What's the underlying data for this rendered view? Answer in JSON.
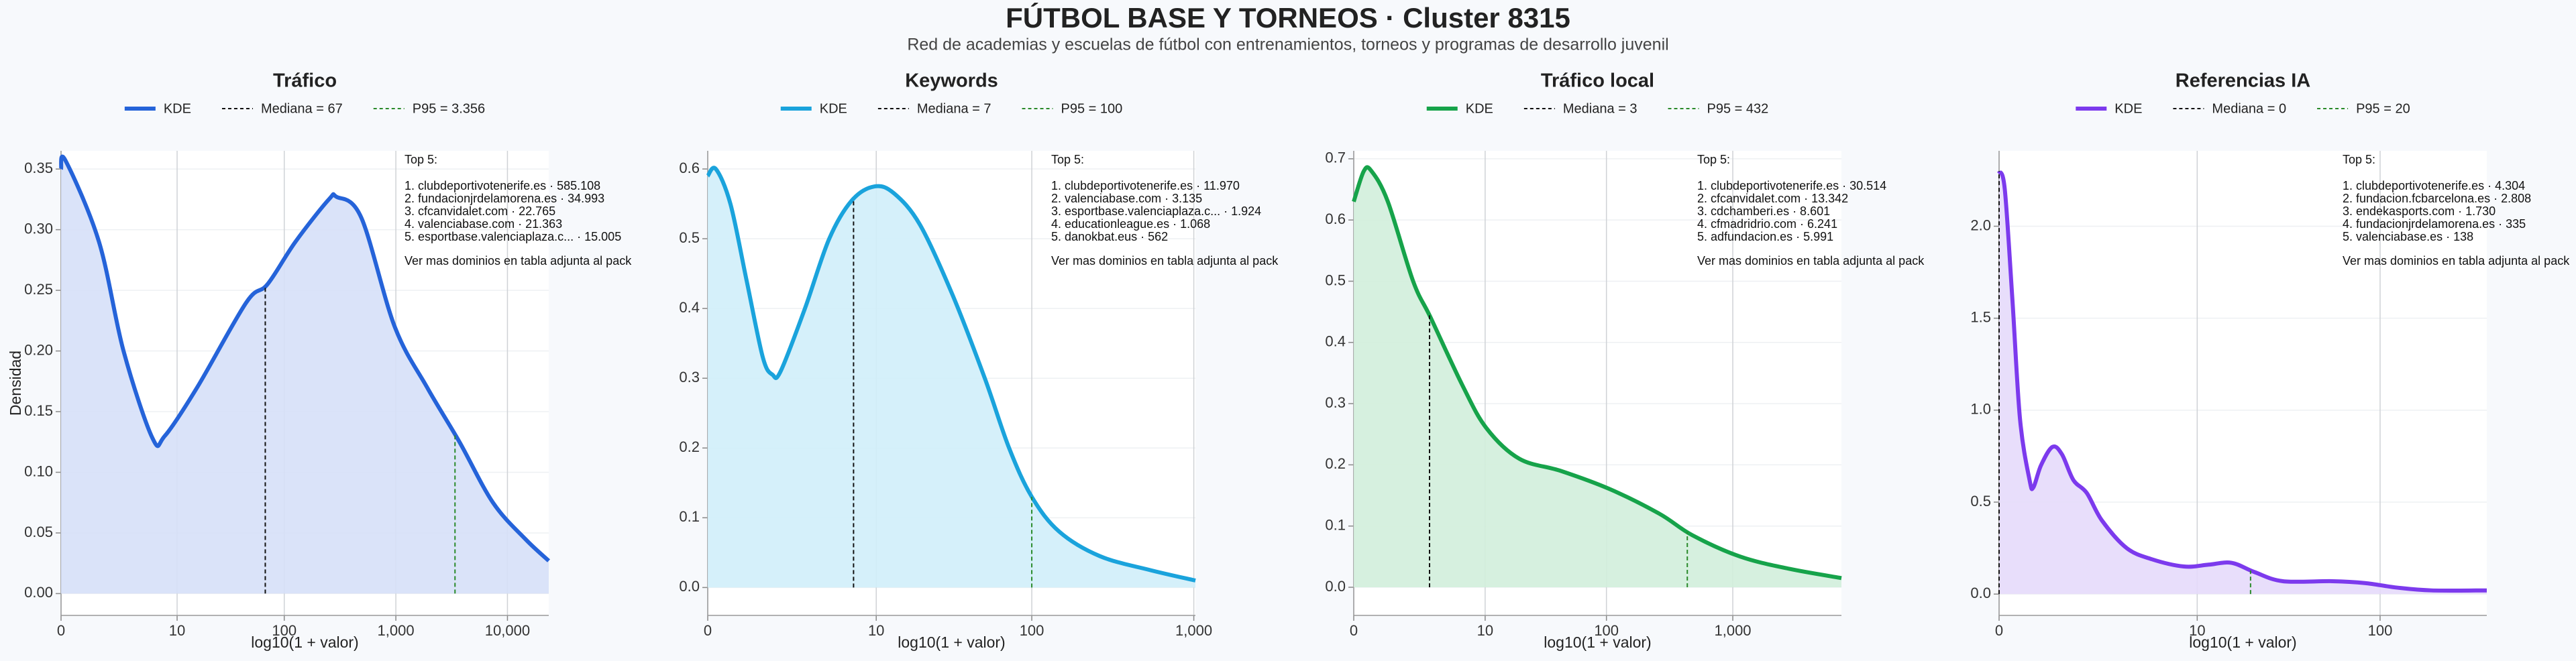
{
  "header": {
    "title": "FÚTBOL BASE Y TORNEOS · Cluster 8315",
    "subtitle": "Red de academias y escuelas de fútbol con entrenamientos, torneos y programas de desarrollo juvenil"
  },
  "chart_data": [
    {
      "type": "area",
      "title": "Tráfico",
      "x_label": "log10(1 + valor)",
      "y_label": "Densidad",
      "series": [
        {
          "name": "KDE",
          "color": "#2563d9",
          "fill": "#d6e0f8",
          "x": [
            0,
            0.04,
            0.34,
            0.56,
            0.82,
            0.93,
            1.22,
            1.66,
            1.85,
            2.1,
            2.4,
            2.47,
            2.69,
            2.99,
            3.28,
            3.57,
            3.87,
            4.16,
            4.37
          ],
          "values": [
            0.35,
            0.357,
            0.29,
            0.2,
            0.128,
            0.13,
            0.17,
            0.24,
            0.255,
            0.29,
            0.325,
            0.327,
            0.31,
            0.22,
            0.17,
            0.125,
            0.075,
            0.045,
            0.027
          ]
        }
      ],
      "median": {
        "name": "Mediana = 67",
        "color": "#111111",
        "x": 1.83
      },
      "p95": {
        "name": "P95 = 3.356",
        "color": "#2a8a2a",
        "x": 3.53
      },
      "xlim": [
        0,
        4.37
      ],
      "xticks": [
        0,
        {
          "value": 1.04,
          "label": "10"
        },
        {
          "value": 2.0,
          "label": "100"
        },
        {
          "value": 3.0,
          "label": "1,000"
        },
        {
          "value": 4.0,
          "label": "10,000"
        }
      ],
      "ylim": [
        -0.018,
        0.365
      ],
      "yticks": [
        {
          "value": 0,
          "label": "0.00"
        },
        {
          "value": 0.05,
          "label": "0.05"
        },
        {
          "value": 0.1,
          "label": "0.10"
        },
        {
          "value": 0.15,
          "label": "0.15"
        },
        {
          "value": 0.2,
          "label": "0.20"
        },
        {
          "value": 0.25,
          "label": "0.25"
        },
        {
          "value": 0.3,
          "label": "0.30"
        },
        {
          "value": 0.35,
          "label": "0.35"
        }
      ],
      "grid": true,
      "annotation": {
        "title": "Top 5:",
        "items": [
          "1. clubdeportivotenerife.es · 585.108",
          "2. fundacionjrdelamorena.es · 34.993",
          "3. cfcanvidalet.com · 22.765",
          "4. valenciabase.com · 21.363",
          "5. esportbase.valenciaplaza.c... · 15.005"
        ],
        "note": "Ver mas dominios en tabla adjunta al pack"
      }
    },
    {
      "type": "area",
      "title": "Keywords",
      "x_label": "log10(1 + valor)",
      "series": [
        {
          "name": "KDE",
          "color": "#1aa3dc",
          "fill": "#d0eefa",
          "x": [
            0,
            0.05,
            0.14,
            0.24,
            0.34,
            0.4,
            0.45,
            0.6,
            0.75,
            0.89,
            1.03,
            1.15,
            1.31,
            1.51,
            1.71,
            1.86,
            2.0,
            2.17,
            2.42,
            2.73,
            3.01
          ],
          "values": [
            0.59,
            0.6,
            0.55,
            0.44,
            0.33,
            0.305,
            0.31,
            0.4,
            0.5,
            0.555,
            0.575,
            0.565,
            0.52,
            0.42,
            0.3,
            0.2,
            0.13,
            0.08,
            0.045,
            0.025,
            0.01
          ]
        }
      ],
      "median": {
        "name": "Mediana = 7",
        "color": "#111111",
        "x": 0.9
      },
      "p95": {
        "name": "P95 = 100",
        "color": "#2a8a2a",
        "x": 2.0
      },
      "xlim": [
        0,
        3.01
      ],
      "xticks": [
        0,
        {
          "value": 1.04,
          "label": "10"
        },
        {
          "value": 2.0,
          "label": "100"
        },
        {
          "value": 3.0,
          "label": "1,000"
        }
      ],
      "ylim": [
        -0.04,
        0.626
      ],
      "yticks": [
        {
          "value": 0,
          "label": "0.0"
        },
        0.1,
        0.2,
        0.3,
        0.4,
        0.5,
        0.6
      ],
      "grid": true,
      "annotation": {
        "title": "Top 5:",
        "items": [
          "1. clubdeportivotenerife.es · 11.970",
          "2. valenciabase.com · 3.135",
          "3. esportbase.valenciaplaza.c... · 1.924",
          "4. educationleague.es · 1.068",
          "5. danokbat.eus · 562"
        ],
        "note": "Ver mas dominios en tabla adjunta al pack"
      }
    },
    {
      "type": "area",
      "title": "Tráfico local",
      "x_label": "log10(1 + valor)",
      "series": [
        {
          "name": "KDE",
          "color": "#16a34a",
          "fill": "#d2eedb",
          "x": [
            0,
            0.08,
            0.14,
            0.27,
            0.47,
            0.61,
            0.86,
            1.05,
            1.31,
            1.64,
            2.03,
            2.42,
            2.68,
            3.06,
            3.45,
            3.86
          ],
          "values": [
            0.63,
            0.68,
            0.68,
            0.63,
            0.5,
            0.44,
            0.33,
            0.26,
            0.21,
            0.19,
            0.16,
            0.12,
            0.085,
            0.05,
            0.03,
            0.015
          ]
        }
      ],
      "median": {
        "name": "Mediana = 3",
        "color": "#111111",
        "x": 0.6
      },
      "p95": {
        "name": "P95 = 432",
        "color": "#2a8a2a",
        "x": 2.64
      },
      "xlim": [
        0,
        3.86
      ],
      "xticks": [
        0,
        {
          "value": 1.04,
          "label": "10"
        },
        {
          "value": 2.0,
          "label": "100"
        },
        {
          "value": 3.0,
          "label": "1,000"
        }
      ],
      "ylim": [
        -0.046,
        0.713
      ],
      "yticks": [
        {
          "value": 0,
          "label": "0.0"
        },
        0.1,
        0.2,
        0.3,
        0.4,
        0.5,
        0.6,
        0.7
      ],
      "grid": true,
      "annotation": {
        "title": "Top 5:",
        "items": [
          "1. clubdeportivotenerife.es · 30.514",
          "2. cfcanvidalet.com · 13.342",
          "3. cdchamberi.es · 8.601",
          "4. cfmadridrio.com · 6.241",
          "5. adfundacion.es · 5.991"
        ],
        "note": "Ver mas dominios en tabla adjunta al pack"
      }
    },
    {
      "type": "area",
      "title": "Referencias IA",
      "x_label": "log10(1 + valor)",
      "series": [
        {
          "name": "KDE",
          "color": "#7c3aed",
          "fill": "#e6dafb",
          "x": [
            0,
            0.03,
            0.07,
            0.11,
            0.16,
            0.18,
            0.22,
            0.28,
            0.33,
            0.39,
            0.46,
            0.54,
            0.67,
            0.8,
            0.97,
            1.1,
            1.22,
            1.34,
            1.49,
            1.75,
            1.92,
            2.09,
            2.27,
            2.56
          ],
          "values": [
            2.3,
            2.2,
            1.6,
            0.95,
            0.62,
            0.58,
            0.7,
            0.8,
            0.76,
            0.62,
            0.55,
            0.4,
            0.25,
            0.19,
            0.15,
            0.16,
            0.17,
            0.12,
            0.07,
            0.07,
            0.06,
            0.035,
            0.02,
            0.02
          ]
        }
      ],
      "median": {
        "name": "Mediana = 0",
        "color": "#111111",
        "x": 0
      },
      "p95": {
        "name": "P95 = 20",
        "color": "#2a8a2a",
        "x": 1.32
      },
      "xlim": [
        0,
        2.56
      ],
      "xticks": [
        0,
        {
          "value": 1.04,
          "label": "10"
        },
        {
          "value": 2.0,
          "label": "100"
        }
      ],
      "ylim": [
        -0.116,
        2.41
      ],
      "yticks": [
        {
          "value": 0,
          "label": "0.0"
        },
        0.5,
        {
          "value": 1.0,
          "label": "1.0"
        },
        1.5,
        {
          "value": 2.0,
          "label": "2.0"
        }
      ],
      "grid": true,
      "annotation": {
        "title": "Top 5:",
        "items": [
          "1. clubdeportivotenerife.es · 4.304",
          "2. fundacion.fcbarcelona.es · 2.808",
          "3. endekasports.com · 1.730",
          "4. fundacionjrdelamorena.es · 335",
          "5. valenciabase.es · 138"
        ],
        "note": "Ver mas dominios en tabla adjunta al pack"
      }
    }
  ]
}
